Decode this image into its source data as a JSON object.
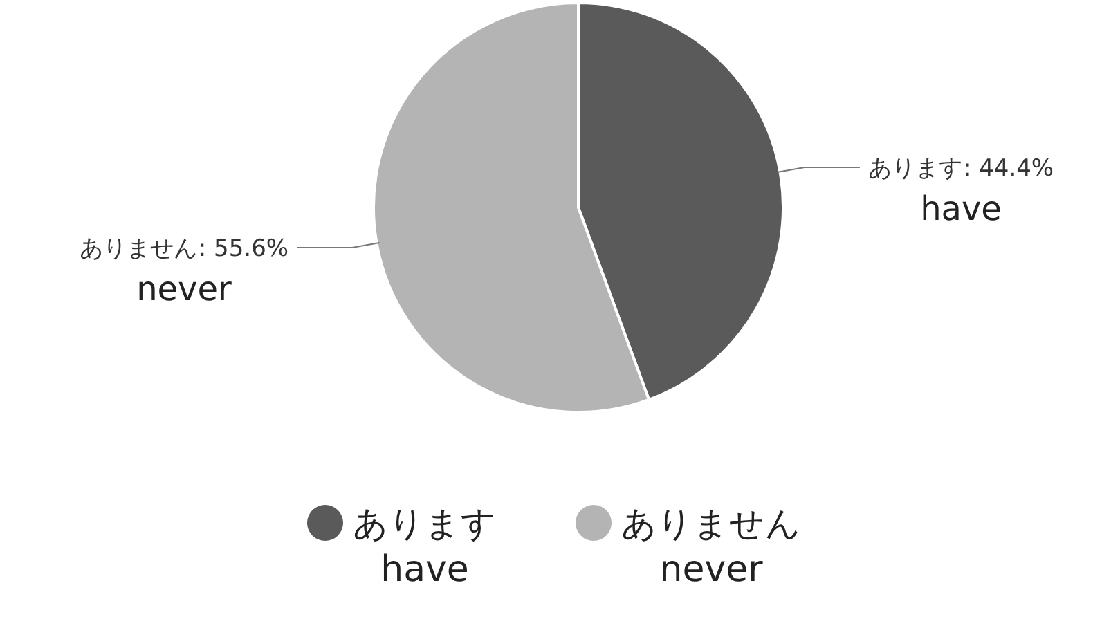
{
  "chart_data": {
    "type": "pie",
    "categories": [
      "あります",
      "ありません"
    ],
    "values": [
      44.4,
      55.6
    ],
    "colors": [
      "#5a5a5a",
      "#b4b4b4"
    ],
    "value_labels": [
      ": 44.4%",
      ": 55.6%"
    ],
    "legend": "bottom",
    "annotations": [
      {
        "text": "have",
        "x": "あります"
      },
      {
        "text": "never",
        "x": "ありません"
      }
    ]
  }
}
